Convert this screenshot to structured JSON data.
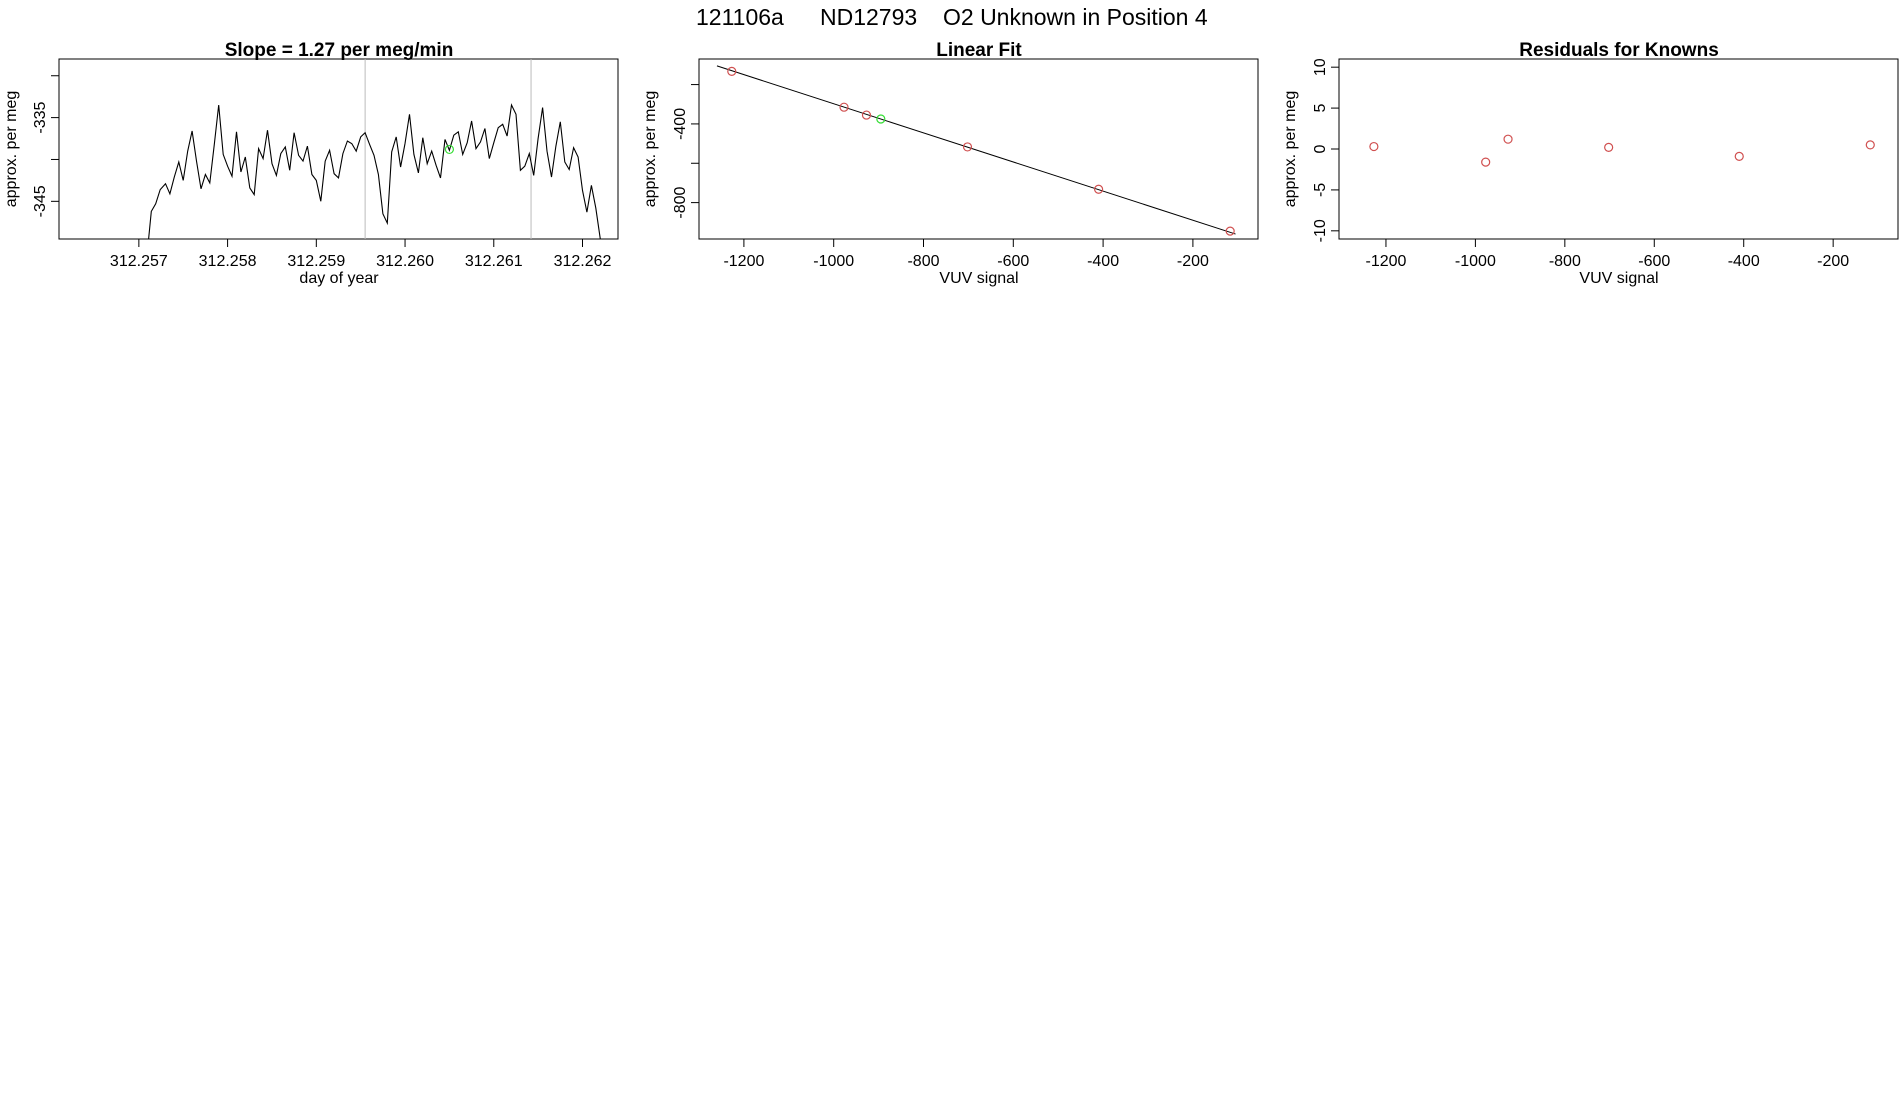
{
  "header": {
    "run_id": "121106a",
    "tank_id": "ND12793",
    "description": "O2 Unknown in Position  4"
  },
  "colors": {
    "axis": "#000000",
    "trace": "#000000",
    "known_points": "#d05050",
    "unknown_point": "#33dd33",
    "marker_lines": "#bbbbbb"
  },
  "chart_data": [
    {
      "type": "line",
      "title": "Slope =  1.27  per meg/min",
      "xlabel": "day of year",
      "ylabel": "approx. per meg",
      "xlim": [
        312.2561,
        312.2624
      ],
      "ylim": [
        -349.5,
        -328
      ],
      "xticks": [
        312.257,
        312.258,
        312.259,
        312.26,
        312.261,
        312.262
      ],
      "xtick_labels": [
        "312.257",
        "312.258",
        "312.259",
        "312.260",
        "312.261",
        "312.262"
      ],
      "yticks": [
        -345,
        -340,
        -335,
        -330
      ],
      "ytick_labels": [
        "-345",
        "",
        "-335",
        ""
      ],
      "grid": false,
      "vlines": [
        312.25955,
        312.26142
      ],
      "series": [
        {
          "x": [
            312.25711,
            312.25714,
            312.25719,
            312.25724,
            312.2573,
            312.25735,
            312.2574,
            312.25745,
            312.2575,
            312.25755,
            312.2576,
            312.25765,
            312.2577,
            312.25775,
            312.2578,
            312.25785,
            312.2579,
            312.25795,
            312.258,
            312.25805,
            312.2581,
            312.25815,
            312.2582,
            312.25825,
            312.2583,
            312.25835,
            312.2584,
            312.25845,
            312.2585,
            312.25855,
            312.2586,
            312.25865,
            312.2587,
            312.25875,
            312.2588,
            312.25885,
            312.2589,
            312.25895,
            312.259,
            312.25905,
            312.2591,
            312.25915,
            312.2592,
            312.25925,
            312.2593,
            312.25935,
            312.2594,
            312.25945,
            312.2595,
            312.25955,
            312.2596,
            312.25965,
            312.2597,
            312.25975,
            312.2598,
            312.25985,
            312.2599,
            312.25995,
            312.26,
            312.26005,
            312.2601,
            312.26015,
            312.2602,
            312.26025,
            312.2603,
            312.26035,
            312.2604,
            312.26045,
            312.2605,
            312.26055,
            312.2606,
            312.26065,
            312.2607,
            312.26075,
            312.2608,
            312.26085,
            312.2609,
            312.26095,
            312.261,
            312.26105,
            312.2611,
            312.26115,
            312.2612,
            312.26125,
            312.2613,
            312.26135,
            312.2614,
            312.26145,
            312.2615,
            312.26155,
            312.2616,
            312.26165,
            312.2617,
            312.26175,
            312.2618,
            312.26185,
            312.2619,
            312.26195,
            312.262,
            312.26205,
            312.2621,
            312.26215,
            312.2622
          ],
          "y": [
            -349.5,
            -346.2,
            -345.3,
            -343.6,
            -342.9,
            -344.1,
            -342.1,
            -340.3,
            -342.5,
            -339.0,
            -336.6,
            -340.2,
            -343.5,
            -341.8,
            -342.8,
            -338.2,
            -333.5,
            -339.4,
            -340.8,
            -342.0,
            -336.7,
            -341.5,
            -339.7,
            -343.4,
            -344.2,
            -338.7,
            -339.9,
            -336.5,
            -340.5,
            -341.9,
            -339.3,
            -338.5,
            -341.3,
            -336.8,
            -339.5,
            -340.2,
            -338.4,
            -341.8,
            -342.5,
            -345.0,
            -340.2,
            -338.9,
            -341.7,
            -342.2,
            -339.3,
            -337.8,
            -338.1,
            -339.0,
            -337.3,
            -336.8,
            -338.2,
            -339.5,
            -341.8,
            -346.5,
            -347.6,
            -339.1,
            -337.3,
            -340.9,
            -338.1,
            -334.6,
            -339.4,
            -341.6,
            -337.4,
            -340.5,
            -339.0,
            -340.7,
            -342.2,
            -337.6,
            -338.9,
            -337.1,
            -336.7,
            -339.4,
            -338.0,
            -335.4,
            -338.7,
            -337.9,
            -336.3,
            -339.9,
            -338.0,
            -336.2,
            -335.8,
            -337.2,
            -333.5,
            -334.6,
            -341.3,
            -340.8,
            -339.3,
            -341.9,
            -337.5,
            -333.8,
            -339.0,
            -342.1,
            -338.4,
            -335.5,
            -340.3,
            -341.2,
            -338.6,
            -339.7,
            -343.7,
            -346.3,
            -343.1,
            -345.8,
            -349.5
          ]
        }
      ],
      "highlight_points": [
        {
          "x": 312.2605,
          "y": -338.8,
          "color": "green"
        }
      ]
    },
    {
      "type": "scatter",
      "title": "Linear Fit",
      "xlabel": "VUV signal",
      "ylabel": "approx. per meg",
      "xlim": [
        -1300,
        -55
      ],
      "ylim": [
        -985,
        -70
      ],
      "xticks": [
        -1200,
        -1000,
        -800,
        -600,
        -400,
        -200
      ],
      "xtick_labels": [
        "-1200",
        "-1000",
        "-800",
        "-600",
        "-400",
        "-200"
      ],
      "yticks": [
        -800,
        -600,
        -400,
        -200
      ],
      "ytick_labels": [
        "-800",
        "",
        "-400",
        ""
      ],
      "grid": false,
      "fit_line": {
        "x": [
          -1260,
          -105
        ],
        "y": [
          -105,
          -960
        ]
      },
      "series": [
        {
          "name": "knowns",
          "x": [
            -1227,
            -977,
            -927,
            -702,
            -410,
            -117
          ],
          "y": [
            -133,
            -315,
            -355,
            -517,
            -732,
            -945
          ]
        },
        {
          "name": "unknown",
          "x": [
            -895
          ],
          "y": [
            -375
          ]
        }
      ]
    },
    {
      "type": "scatter",
      "title": "Residuals for Knowns",
      "xlabel": "VUV signal",
      "ylabel": "approx. per meg",
      "xlim": [
        -1305,
        -55
      ],
      "ylim": [
        -11,
        11
      ],
      "xticks": [
        -1200,
        -1000,
        -800,
        -600,
        -400,
        -200
      ],
      "xtick_labels": [
        "-1200",
        "-1000",
        "-800",
        "-600",
        "-400",
        "-200"
      ],
      "yticks": [
        -10,
        -5,
        0,
        5,
        10
      ],
      "ytick_labels": [
        "-10",
        "-5",
        "0",
        "5",
        "10"
      ],
      "grid": false,
      "series": [
        {
          "name": "knowns",
          "x": [
            -1227,
            -977,
            -927,
            -702,
            -410,
            -117
          ],
          "y": [
            0.3,
            -1.6,
            1.2,
            0.2,
            -0.9,
            0.5
          ]
        }
      ]
    }
  ]
}
